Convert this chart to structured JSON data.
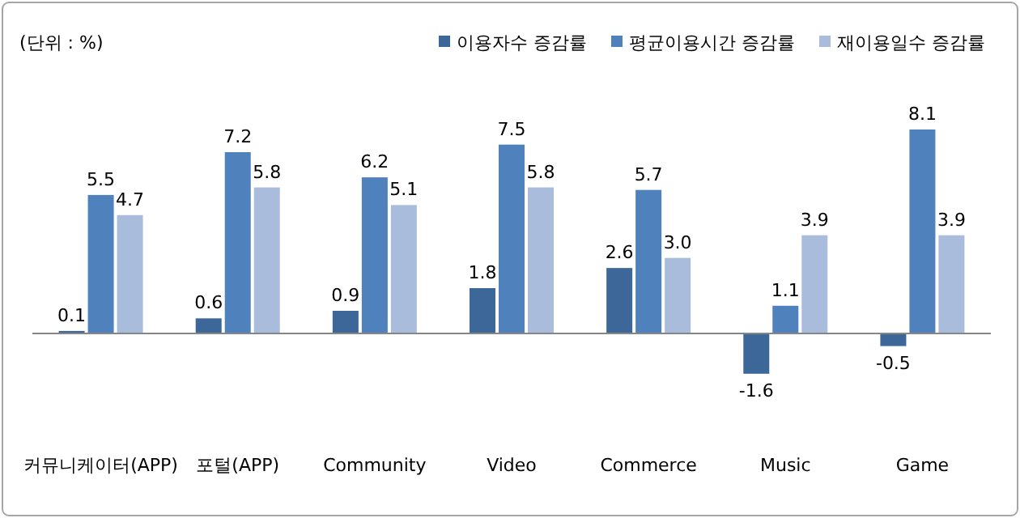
{
  "chart_data": {
    "type": "bar",
    "categories": [
      "커뮤니케이터(APP)",
      "포털(APP)",
      "Community",
      "Video",
      "Commerce",
      "Music",
      "Game"
    ],
    "series": [
      {
        "name": "이용자수 증감률",
        "color": "#3d6799",
        "values": [
          0.1,
          0.6,
          0.9,
          1.8,
          2.6,
          -1.6,
          -0.5
        ]
      },
      {
        "name": "평균이용시간 증감률",
        "color": "#4f81bd",
        "values": [
          5.5,
          7.2,
          6.2,
          7.5,
          5.7,
          1.1,
          8.1
        ]
      },
      {
        "name": "재이용일수 증감률",
        "color": "#aabcdb",
        "values": [
          4.7,
          5.8,
          5.1,
          5.8,
          3.0,
          3.9,
          3.9
        ],
        "value_labels": [
          "4.7",
          "5.8",
          "5.1",
          "5.8",
          "3.0",
          "3.9",
          "3.9"
        ]
      }
    ],
    "data_labels": true,
    "legend": "top right",
    "annotations": [
      "(단위 : %)"
    ]
  }
}
